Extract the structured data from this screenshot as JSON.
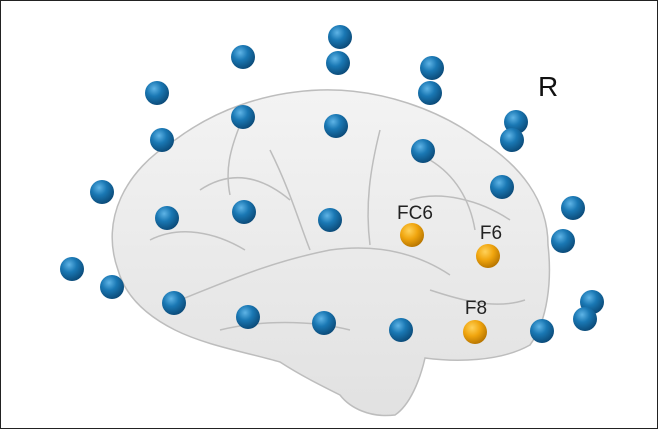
{
  "hemisphere_label": "R",
  "electrodes": [
    "FC6",
    "F6",
    "F8"
  ]
}
